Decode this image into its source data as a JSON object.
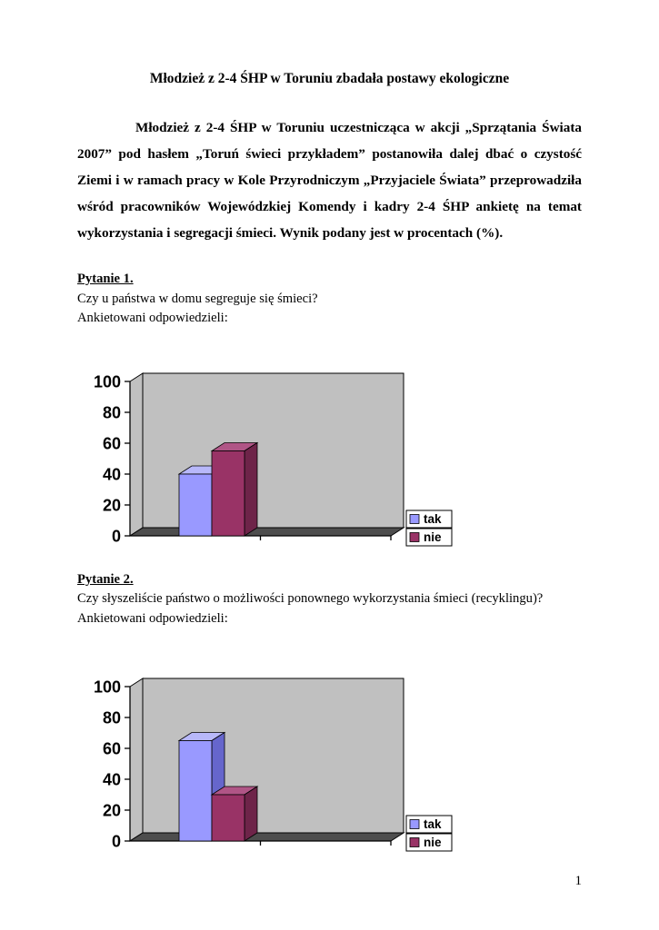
{
  "document": {
    "title": "Młodzież z 2-4 ŚHP w Toruniu zbadała postawy ekologiczne",
    "intro": "Młodzież z 2-4 ŚHP w Toruniu uczestnicząca w akcji „Sprzątania Świata 2007” pod hasłem „Toruń świeci przykładem” postanowiła dalej dbać o czystość Ziemi i w ramach pracy w Kole Przyrodniczym „Przyjaciele Świata” przeprowadziła wśród pracowników Wojewódzkiej Komendy i kadry 2-4 ŚHP ankietę na temat wykorzystania i segregacji śmieci. Wynik podany jest w procentach (%).",
    "page_number": "1"
  },
  "sections": [
    {
      "label": "Pytanie 1.",
      "question": "Czy u państwa w domu segreguje się śmieci?",
      "prompt": "Ankietowani odpowiedzieli:"
    },
    {
      "label": "Pytanie 2.",
      "question": "Czy słyszeliście państwo o możliwości ponownego wykorzystania śmieci (recyklingu)?",
      "prompt": "Ankietowani odpowiedzieli:"
    }
  ],
  "chart_data": [
    {
      "type": "bar",
      "projection": "3d",
      "title": "",
      "xlabel": "",
      "ylabel": "",
      "categories": [
        "tak",
        "nie"
      ],
      "values": [
        40,
        55
      ],
      "ylim": [
        0,
        100
      ],
      "yticks": [
        0,
        20,
        40,
        60,
        80,
        100
      ],
      "grid": false,
      "legend": [
        "tak",
        "nie"
      ],
      "legend_position": "right-bottom",
      "series_colors": [
        {
          "front": "#9999ff",
          "top": "#b8b8fa",
          "side": "#6666cc"
        },
        {
          "front": "#993366",
          "top": "#b05586",
          "side": "#6e2449"
        }
      ],
      "wall_color": "#c0c0c0",
      "floor_color": "#4d4d4d"
    },
    {
      "type": "bar",
      "projection": "3d",
      "title": "",
      "xlabel": "",
      "ylabel": "",
      "categories": [
        "tak",
        "nie"
      ],
      "values": [
        65,
        30
      ],
      "ylim": [
        0,
        100
      ],
      "yticks": [
        0,
        20,
        40,
        60,
        80,
        100
      ],
      "grid": false,
      "legend": [
        "tak",
        "nie"
      ],
      "legend_position": "right-bottom",
      "series_colors": [
        {
          "front": "#9999ff",
          "top": "#b8b8fa",
          "side": "#6666cc"
        },
        {
          "front": "#993366",
          "top": "#b05586",
          "side": "#6e2449"
        }
      ],
      "wall_color": "#c0c0c0",
      "floor_color": "#4d4d4d"
    }
  ]
}
